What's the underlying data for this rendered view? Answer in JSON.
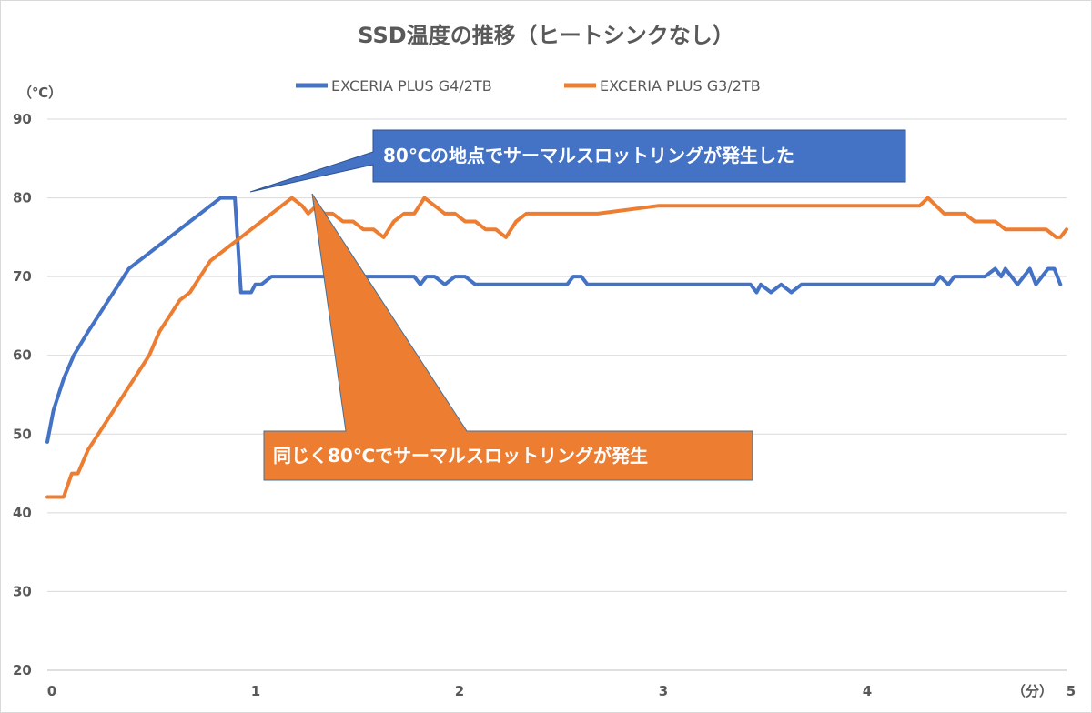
{
  "chart_data": {
    "type": "line",
    "title": "SSD温度の推移（ヒートシンクなし）",
    "ylabel": "（℃）",
    "xlabel": "（分）",
    "ylim": [
      20,
      90
    ],
    "xlim": [
      0,
      5
    ],
    "y_ticks": [
      "20",
      "30",
      "40",
      "50",
      "60",
      "70",
      "80",
      "90"
    ],
    "x_ticks": [
      "0",
      "1",
      "2",
      "3",
      "4",
      "5"
    ],
    "grid": "horizontal",
    "legend_position": "top",
    "series": [
      {
        "name": "EXCERIA PLUS G4/2TB",
        "color": "#4472C4",
        "x": [
          0,
          0.03,
          0.08,
          0.13,
          0.2,
          0.25,
          0.3,
          0.35,
          0.4,
          0.45,
          0.5,
          0.55,
          0.6,
          0.65,
          0.7,
          0.75,
          0.8,
          0.85,
          0.88,
          0.92,
          0.95,
          0.97,
          1.0,
          1.02,
          1.05,
          1.1,
          1.15,
          1.8,
          1.83,
          1.86,
          1.9,
          1.95,
          2.0,
          2.05,
          2.1,
          2.15,
          2.2,
          2.55,
          2.58,
          2.62,
          2.65,
          3.0,
          3.45,
          3.48,
          3.5,
          3.55,
          3.6,
          3.65,
          3.7,
          3.75,
          3.8,
          3.85,
          4.35,
          4.38,
          4.42,
          4.45,
          4.5,
          4.6,
          4.65,
          4.68,
          4.7,
          4.73,
          4.76,
          4.79,
          4.82,
          4.85,
          4.88,
          4.91,
          4.94,
          4.97
        ],
        "values": [
          49,
          53,
          57,
          60,
          63,
          65,
          67,
          69,
          71,
          72,
          73,
          74,
          75,
          76,
          77,
          78,
          79,
          80,
          80,
          80,
          68,
          68,
          68,
          69,
          69,
          70,
          70,
          70,
          69,
          70,
          70,
          69,
          70,
          70,
          69,
          69,
          69,
          69,
          70,
          70,
          69,
          69,
          69,
          68,
          69,
          68,
          69,
          68,
          69,
          69,
          69,
          69,
          69,
          70,
          69,
          70,
          70,
          70,
          71,
          70,
          71,
          70,
          69,
          70,
          71,
          69,
          70,
          71,
          71,
          69
        ]
      },
      {
        "name": "EXCERIA PLUS G3/2TB",
        "color": "#ED7D31",
        "x": [
          0,
          0.05,
          0.08,
          0.12,
          0.15,
          0.2,
          0.25,
          0.3,
          0.35,
          0.4,
          0.45,
          0.5,
          0.55,
          0.6,
          0.65,
          0.7,
          0.75,
          0.8,
          0.85,
          0.9,
          0.95,
          1.0,
          1.05,
          1.1,
          1.15,
          1.2,
          1.25,
          1.28,
          1.32,
          1.36,
          1.4,
          1.45,
          1.5,
          1.55,
          1.6,
          1.65,
          1.7,
          1.75,
          1.8,
          1.85,
          1.9,
          1.95,
          2.0,
          2.05,
          2.1,
          2.15,
          2.2,
          2.25,
          2.3,
          2.35,
          2.4,
          2.45,
          2.5,
          2.55,
          2.6,
          2.65,
          2.7,
          3.0,
          3.2,
          3.25,
          3.5,
          4.0,
          4.2,
          4.25,
          4.28,
          4.32,
          4.36,
          4.4,
          4.45,
          4.5,
          4.55,
          4.6,
          4.65,
          4.7,
          4.75,
          4.8,
          4.85,
          4.9,
          4.95,
          4.97,
          5.0
        ],
        "values": [
          42,
          42,
          42,
          45,
          45,
          48,
          50,
          52,
          54,
          56,
          58,
          60,
          63,
          65,
          67,
          68,
          70,
          72,
          73,
          74,
          75,
          76,
          77,
          78,
          79,
          80,
          79,
          78,
          79,
          78,
          78,
          77,
          77,
          76,
          76,
          75,
          77,
          78,
          78,
          80,
          79,
          78,
          78,
          77,
          77,
          76,
          76,
          75,
          77,
          78,
          78,
          78,
          78,
          78,
          78,
          78,
          78,
          79,
          79,
          79,
          79,
          79,
          79,
          79,
          79,
          80,
          79,
          78,
          78,
          78,
          77,
          77,
          77,
          76,
          76,
          76,
          76,
          76,
          75,
          75,
          76
        ]
      }
    ],
    "annotations": [
      {
        "text": "80℃の地点でサーマルスロットリングが発生した",
        "color": "#4472C4"
      },
      {
        "text": "同じく80℃でサーマルスロットリングが発生",
        "color": "#ED7D31"
      }
    ]
  }
}
